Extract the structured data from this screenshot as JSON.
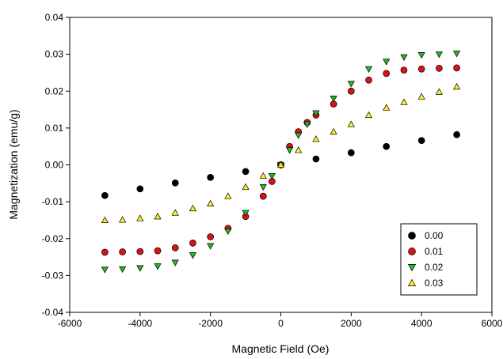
{
  "chart_data": {
    "type": "scatter",
    "title": "",
    "xlabel": "Magnetic Field (Oe)",
    "ylabel": "Magnetization (emu/g)",
    "xlim": [
      -6000,
      6000
    ],
    "ylim": [
      -0.04,
      0.04
    ],
    "x_ticks": [
      -6000,
      -4000,
      -2000,
      0,
      2000,
      4000,
      6000
    ],
    "y_ticks": [
      -0.04,
      -0.03,
      -0.02,
      -0.01,
      0.0,
      0.01,
      0.02,
      0.03,
      0.04
    ],
    "x_tick_labels": [
      "-6000",
      "-4000",
      "-2000",
      "0",
      "2000",
      "4000",
      "6000"
    ],
    "y_tick_labels": [
      "-0.04",
      "-0.03",
      "-0.02",
      "-0.01",
      "0.00",
      "0.01",
      "0.02",
      "0.03",
      "0.04"
    ],
    "grid": false,
    "legend_position": "bottom-right",
    "series": [
      {
        "name": "0.00",
        "marker": "circle",
        "color": "#000000",
        "x": [
          -5000,
          -4000,
          -3000,
          -2000,
          -1000,
          0,
          1000,
          2000,
          3000,
          4000,
          5000
        ],
        "y": [
          -0.0083,
          -0.0065,
          -0.0049,
          -0.0034,
          -0.0018,
          0.0,
          0.0016,
          0.0033,
          0.005,
          0.0066,
          0.0082
        ]
      },
      {
        "name": "0.01",
        "marker": "circle",
        "color": "#dd1111",
        "x": [
          -5000,
          -4500,
          -4000,
          -3500,
          -3000,
          -2500,
          -2000,
          -1500,
          -1000,
          -500,
          -250,
          0,
          250,
          500,
          750,
          1000,
          1500,
          2000,
          2500,
          3000,
          3500,
          4000,
          4500,
          5000
        ],
        "y": [
          -0.0237,
          -0.0236,
          -0.0235,
          -0.0233,
          -0.0225,
          -0.0212,
          -0.0195,
          -0.0172,
          -0.014,
          -0.0085,
          -0.0045,
          0.0,
          0.005,
          0.009,
          0.0115,
          0.0135,
          0.0165,
          0.02,
          0.023,
          0.0248,
          0.0257,
          0.026,
          0.0262,
          0.0263
        ]
      },
      {
        "name": "0.02",
        "marker": "triangle-down",
        "color": "#22bb22",
        "x": [
          -5000,
          -4500,
          -4000,
          -3500,
          -3000,
          -2500,
          -2000,
          -1500,
          -1000,
          -500,
          -250,
          0,
          250,
          500,
          750,
          1000,
          1500,
          2000,
          2500,
          3000,
          3500,
          4000,
          4500,
          5000
        ],
        "y": [
          -0.0284,
          -0.0283,
          -0.028,
          -0.0275,
          -0.0265,
          -0.0245,
          -0.022,
          -0.018,
          -0.013,
          -0.006,
          -0.003,
          0.0,
          0.004,
          0.008,
          0.011,
          0.014,
          0.018,
          0.022,
          0.026,
          0.028,
          0.0292,
          0.0298,
          0.03,
          0.0302
        ]
      },
      {
        "name": "0.03",
        "marker": "triangle-up",
        "color": "#ffee22",
        "x": [
          -5000,
          -4500,
          -4000,
          -3500,
          -3000,
          -2500,
          -2000,
          -1500,
          -1000,
          -500,
          0,
          500,
          1000,
          1500,
          2000,
          2500,
          3000,
          3500,
          4000,
          4500,
          5000
        ],
        "y": [
          -0.015,
          -0.0149,
          -0.0145,
          -0.014,
          -0.013,
          -0.0118,
          -0.0105,
          -0.0085,
          -0.006,
          -0.003,
          0.0,
          0.004,
          0.007,
          0.009,
          0.011,
          0.0135,
          0.0155,
          0.017,
          0.0185,
          0.0198,
          0.0212
        ]
      }
    ]
  }
}
